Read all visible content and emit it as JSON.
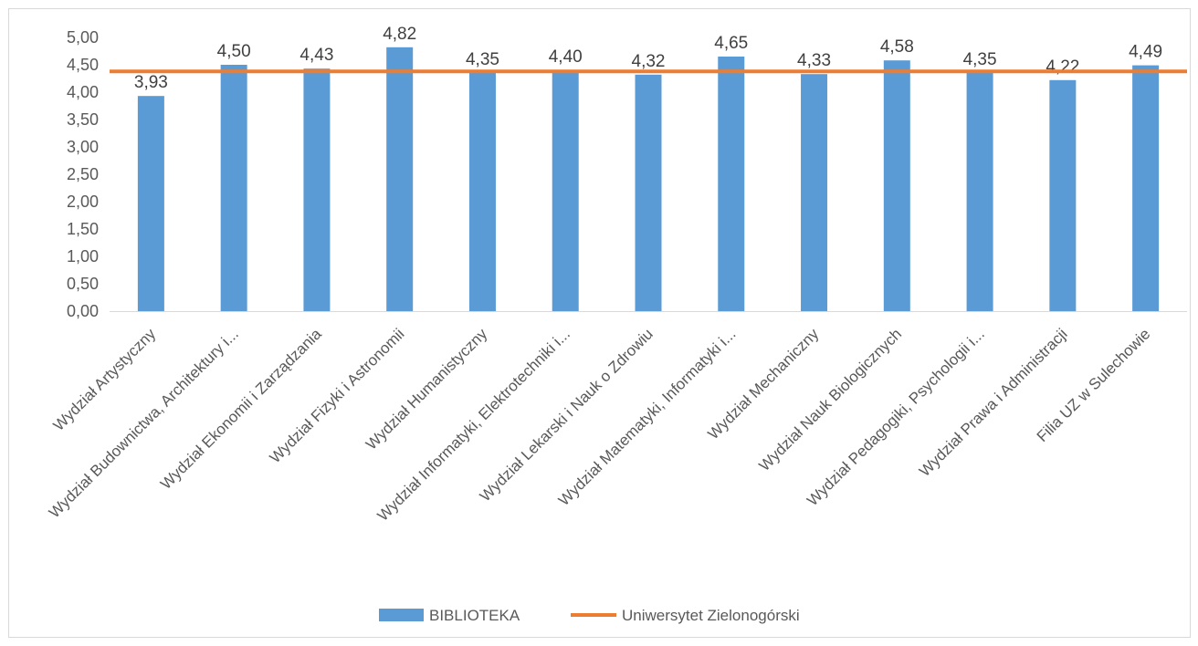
{
  "chart_data": {
    "type": "bar",
    "categories": [
      "Wydział Artystyczny",
      "Wydział Budownictwa, Architektury i...",
      "Wydział Ekonomii i Zarządzania",
      "Wydział Fizyki i Astronomii",
      "Wydział Humanistyczny",
      "Wydział Informatyki, Elektrotechniki i...",
      "Wydział Lekarski i Nauk o Zdrowiu",
      "Wydział Matematyki, Informatyki i...",
      "Wydział Mechaniczny",
      "Wydział Nauk Biologicznych",
      "Wydział Pedagogiki, Psychologii i...",
      "Wydział Prawa i Administracji",
      "Filia UZ w Sulechowie"
    ],
    "series": [
      {
        "name": "BIBLIOTEKA",
        "type": "bar",
        "color": "#5b9bd5",
        "values": [
          3.93,
          4.5,
          4.43,
          4.82,
          4.35,
          4.4,
          4.32,
          4.65,
          4.33,
          4.58,
          4.35,
          4.22,
          4.49
        ],
        "labels": [
          "3,93",
          "4,50",
          "4,43",
          "4,82",
          "4,35",
          "4,40",
          "4,32",
          "4,65",
          "4,33",
          "4,58",
          "4,35",
          "4,22",
          "4,49"
        ]
      },
      {
        "name": "Uniwersytet Zielonogórski",
        "type": "line",
        "color": "#ed7d31",
        "value": 4.38
      }
    ],
    "ylim": [
      0,
      5
    ],
    "ytick_values": [
      0,
      0.5,
      1,
      1.5,
      2,
      2.5,
      3,
      3.5,
      4,
      4.5,
      5
    ],
    "ytick_labels": [
      "0,00",
      "0,50",
      "1,00",
      "1,50",
      "2,00",
      "2,50",
      "3,00",
      "3,50",
      "4,00",
      "4,50",
      "5,00"
    ],
    "grid": false,
    "legend_position": "bottom",
    "title": "",
    "xlabel": "",
    "ylabel": ""
  }
}
